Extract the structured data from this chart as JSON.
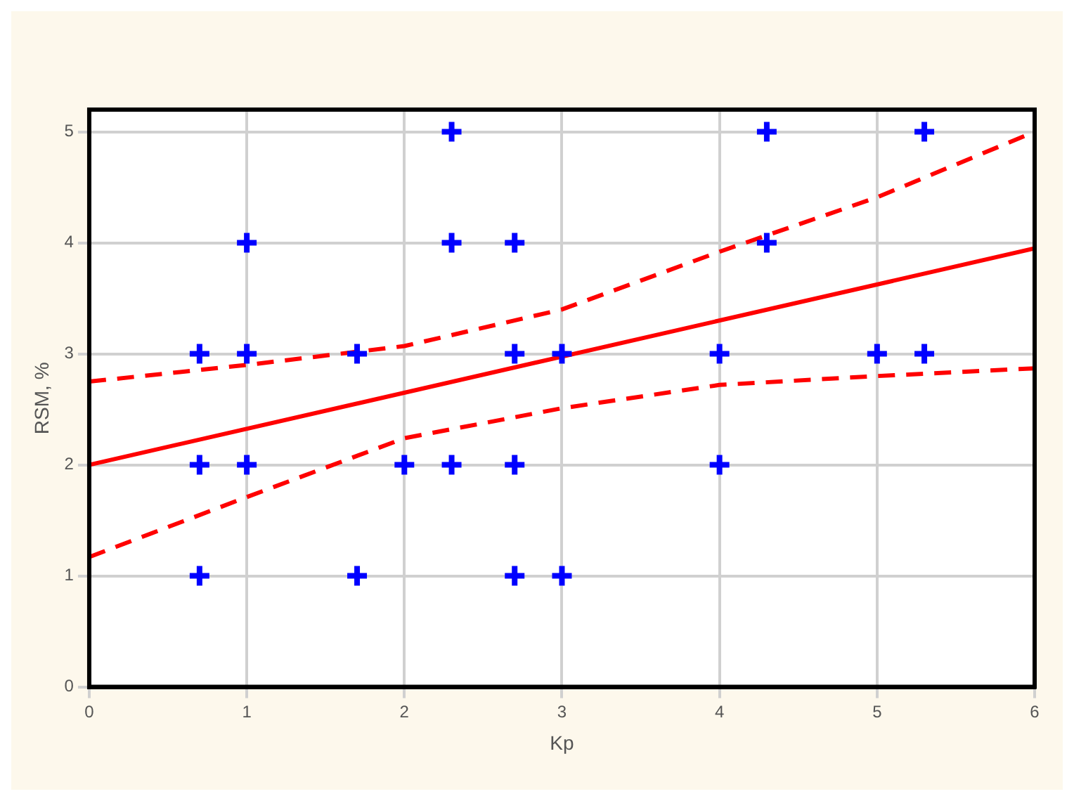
{
  "chart_data": {
    "type": "scatter",
    "xlabel": "Kp",
    "ylabel": "RSM, %",
    "xlim": [
      0,
      6
    ],
    "xticks": [
      0,
      1,
      2,
      3,
      4,
      5,
      6
    ],
    "ylim": [
      0,
      5.2
    ],
    "yticks": [
      0,
      1,
      2,
      3,
      4,
      5
    ],
    "grid": true,
    "legend": false,
    "series": [
      {
        "color": "#0000ff",
        "marker": "cross",
        "x": [
          2.3,
          4.3,
          5.3,
          1,
          2.3,
          2.7,
          4.3,
          0.7,
          1,
          1.7,
          2.7,
          3,
          4,
          5,
          5.3,
          0.7,
          1,
          2,
          2.3,
          2.7,
          4,
          0.7,
          1.7,
          2.7,
          3
        ],
        "values": [
          5,
          5,
          5,
          4,
          4,
          4,
          4,
          3,
          3,
          3,
          3,
          3,
          3,
          3,
          3,
          2,
          2,
          2,
          2,
          2,
          2,
          1,
          1,
          1,
          1
        ]
      },
      {
        "type": "line",
        "color": "#ff0000",
        "line_style": "solid",
        "marker": "none",
        "x": [
          0,
          6
        ],
        "values": [
          2.0,
          3.95
        ]
      },
      {
        "type": "line",
        "color": "#ff0000",
        "line_style": "dashed",
        "marker": "none",
        "x": [
          0,
          1,
          2,
          3,
          4,
          5,
          6
        ],
        "values": [
          2.75,
          2.9,
          3.07,
          3.4,
          3.92,
          4.41,
          5.0
        ]
      },
      {
        "type": "line",
        "color": "#ff0000",
        "line_style": "dashed",
        "marker": "none",
        "x": [
          0,
          1,
          2,
          3,
          4,
          5,
          6
        ],
        "values": [
          1.17,
          1.71,
          2.24,
          2.51,
          2.72,
          2.8,
          2.87
        ]
      }
    ]
  }
}
